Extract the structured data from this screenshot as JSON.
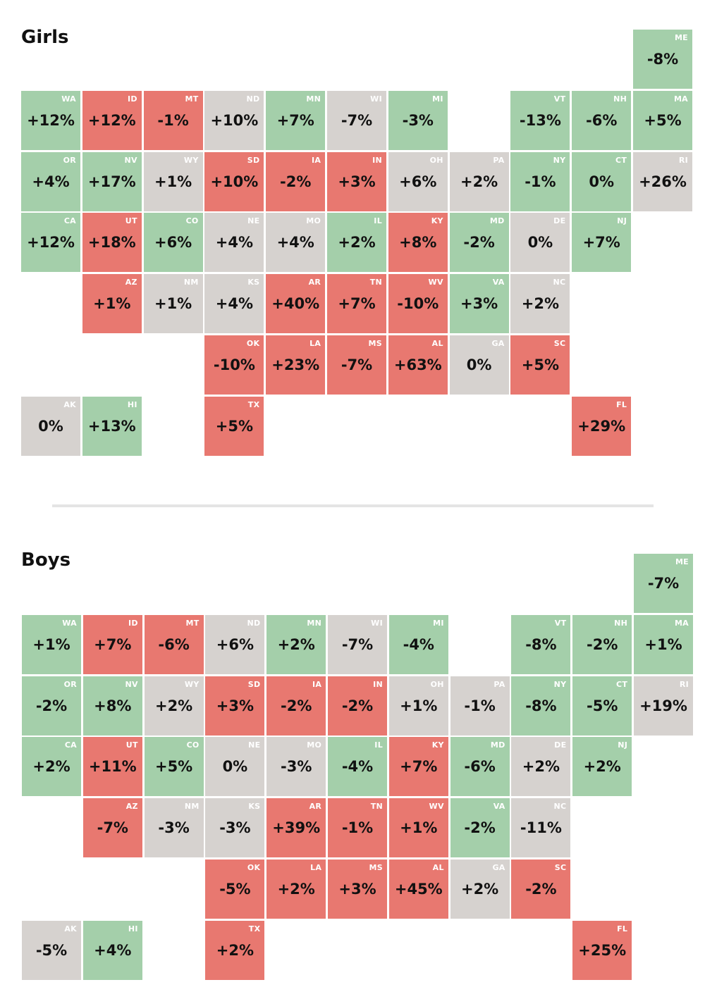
{
  "colors": {
    "green": "#a4cfaa",
    "red": "#e87870",
    "gray": "#d6d2cf"
  },
  "maps": [
    {
      "title": "Girls",
      "tiles": [
        {
          "state": "ME",
          "value": "-8%",
          "col": 10,
          "row": 0,
          "color": "green"
        },
        {
          "state": "WA",
          "value": "+12%",
          "col": 0,
          "row": 1,
          "color": "green"
        },
        {
          "state": "ID",
          "value": "+12%",
          "col": 1,
          "row": 1,
          "color": "red"
        },
        {
          "state": "MT",
          "value": "-1%",
          "col": 2,
          "row": 1,
          "color": "red"
        },
        {
          "state": "ND",
          "value": "+10%",
          "col": 3,
          "row": 1,
          "color": "gray"
        },
        {
          "state": "MN",
          "value": "+7%",
          "col": 4,
          "row": 1,
          "color": "green"
        },
        {
          "state": "WI",
          "value": "-7%",
          "col": 5,
          "row": 1,
          "color": "gray"
        },
        {
          "state": "MI",
          "value": "-3%",
          "col": 6,
          "row": 1,
          "color": "green"
        },
        {
          "state": "VT",
          "value": "-13%",
          "col": 8,
          "row": 1,
          "color": "green"
        },
        {
          "state": "NH",
          "value": "-6%",
          "col": 9,
          "row": 1,
          "color": "green"
        },
        {
          "state": "MA",
          "value": "+5%",
          "col": 10,
          "row": 1,
          "color": "green"
        },
        {
          "state": "OR",
          "value": "+4%",
          "col": 0,
          "row": 2,
          "color": "green"
        },
        {
          "state": "NV",
          "value": "+17%",
          "col": 1,
          "row": 2,
          "color": "green"
        },
        {
          "state": "WY",
          "value": "+1%",
          "col": 2,
          "row": 2,
          "color": "gray"
        },
        {
          "state": "SD",
          "value": "+10%",
          "col": 3,
          "row": 2,
          "color": "red"
        },
        {
          "state": "IA",
          "value": "-2%",
          "col": 4,
          "row": 2,
          "color": "red"
        },
        {
          "state": "IN",
          "value": "+3%",
          "col": 5,
          "row": 2,
          "color": "red"
        },
        {
          "state": "OH",
          "value": "+6%",
          "col": 6,
          "row": 2,
          "color": "gray"
        },
        {
          "state": "PA",
          "value": "+2%",
          "col": 7,
          "row": 2,
          "color": "gray"
        },
        {
          "state": "NY",
          "value": "-1%",
          "col": 8,
          "row": 2,
          "color": "green"
        },
        {
          "state": "CT",
          "value": "0%",
          "col": 9,
          "row": 2,
          "color": "green"
        },
        {
          "state": "RI",
          "value": "+26%",
          "col": 10,
          "row": 2,
          "color": "gray"
        },
        {
          "state": "CA",
          "value": "+12%",
          "col": 0,
          "row": 3,
          "color": "green"
        },
        {
          "state": "UT",
          "value": "+18%",
          "col": 1,
          "row": 3,
          "color": "red"
        },
        {
          "state": "CO",
          "value": "+6%",
          "col": 2,
          "row": 3,
          "color": "green"
        },
        {
          "state": "NE",
          "value": "+4%",
          "col": 3,
          "row": 3,
          "color": "gray"
        },
        {
          "state": "MO",
          "value": "+4%",
          "col": 4,
          "row": 3,
          "color": "gray"
        },
        {
          "state": "IL",
          "value": "+2%",
          "col": 5,
          "row": 3,
          "color": "green"
        },
        {
          "state": "KY",
          "value": "+8%",
          "col": 6,
          "row": 3,
          "color": "red"
        },
        {
          "state": "MD",
          "value": "-2%",
          "col": 7,
          "row": 3,
          "color": "green"
        },
        {
          "state": "DE",
          "value": "0%",
          "col": 8,
          "row": 3,
          "color": "gray"
        },
        {
          "state": "NJ",
          "value": "+7%",
          "col": 9,
          "row": 3,
          "color": "green"
        },
        {
          "state": "AZ",
          "value": "+1%",
          "col": 1,
          "row": 4,
          "color": "red"
        },
        {
          "state": "NM",
          "value": "+1%",
          "col": 2,
          "row": 4,
          "color": "gray"
        },
        {
          "state": "KS",
          "value": "+4%",
          "col": 3,
          "row": 4,
          "color": "gray"
        },
        {
          "state": "AR",
          "value": "+40%",
          "col": 4,
          "row": 4,
          "color": "red"
        },
        {
          "state": "TN",
          "value": "+7%",
          "col": 5,
          "row": 4,
          "color": "red"
        },
        {
          "state": "WV",
          "value": "-10%",
          "col": 6,
          "row": 4,
          "color": "red"
        },
        {
          "state": "VA",
          "value": "+3%",
          "col": 7,
          "row": 4,
          "color": "green"
        },
        {
          "state": "NC",
          "value": "+2%",
          "col": 8,
          "row": 4,
          "color": "gray"
        },
        {
          "state": "OK",
          "value": "-10%",
          "col": 3,
          "row": 5,
          "color": "red"
        },
        {
          "state": "LA",
          "value": "+23%",
          "col": 4,
          "row": 5,
          "color": "red"
        },
        {
          "state": "MS",
          "value": "-7%",
          "col": 5,
          "row": 5,
          "color": "red"
        },
        {
          "state": "AL",
          "value": "+63%",
          "col": 6,
          "row": 5,
          "color": "red"
        },
        {
          "state": "GA",
          "value": "0%",
          "col": 7,
          "row": 5,
          "color": "gray"
        },
        {
          "state": "SC",
          "value": "+5%",
          "col": 8,
          "row": 5,
          "color": "red"
        },
        {
          "state": "AK",
          "value": "0%",
          "col": 0,
          "row": 6,
          "color": "gray"
        },
        {
          "state": "HI",
          "value": "+13%",
          "col": 1,
          "row": 6,
          "color": "green"
        },
        {
          "state": "TX",
          "value": "+5%",
          "col": 3,
          "row": 6,
          "color": "red"
        },
        {
          "state": "FL",
          "value": "+29%",
          "col": 9,
          "row": 6,
          "color": "red"
        }
      ]
    },
    {
      "title": "Boys",
      "tiles": [
        {
          "state": "ME",
          "value": "-7%",
          "col": 10,
          "row": 0,
          "color": "green"
        },
        {
          "state": "WA",
          "value": "+1%",
          "col": 0,
          "row": 1,
          "color": "green"
        },
        {
          "state": "ID",
          "value": "+7%",
          "col": 1,
          "row": 1,
          "color": "red"
        },
        {
          "state": "MT",
          "value": "-6%",
          "col": 2,
          "row": 1,
          "color": "red"
        },
        {
          "state": "ND",
          "value": "+6%",
          "col": 3,
          "row": 1,
          "color": "gray"
        },
        {
          "state": "MN",
          "value": "+2%",
          "col": 4,
          "row": 1,
          "color": "green"
        },
        {
          "state": "WI",
          "value": "-7%",
          "col": 5,
          "row": 1,
          "color": "gray"
        },
        {
          "state": "MI",
          "value": "-4%",
          "col": 6,
          "row": 1,
          "color": "green"
        },
        {
          "state": "VT",
          "value": "-8%",
          "col": 8,
          "row": 1,
          "color": "green"
        },
        {
          "state": "NH",
          "value": "-2%",
          "col": 9,
          "row": 1,
          "color": "green"
        },
        {
          "state": "MA",
          "value": "+1%",
          "col": 10,
          "row": 1,
          "color": "green"
        },
        {
          "state": "OR",
          "value": "-2%",
          "col": 0,
          "row": 2,
          "color": "green"
        },
        {
          "state": "NV",
          "value": "+8%",
          "col": 1,
          "row": 2,
          "color": "green"
        },
        {
          "state": "WY",
          "value": "+2%",
          "col": 2,
          "row": 2,
          "color": "gray"
        },
        {
          "state": "SD",
          "value": "+3%",
          "col": 3,
          "row": 2,
          "color": "red"
        },
        {
          "state": "IA",
          "value": "-2%",
          "col": 4,
          "row": 2,
          "color": "red"
        },
        {
          "state": "IN",
          "value": "-2%",
          "col": 5,
          "row": 2,
          "color": "red"
        },
        {
          "state": "OH",
          "value": "+1%",
          "col": 6,
          "row": 2,
          "color": "gray"
        },
        {
          "state": "PA",
          "value": "-1%",
          "col": 7,
          "row": 2,
          "color": "gray"
        },
        {
          "state": "NY",
          "value": "-8%",
          "col": 8,
          "row": 2,
          "color": "green"
        },
        {
          "state": "CT",
          "value": "-5%",
          "col": 9,
          "row": 2,
          "color": "green"
        },
        {
          "state": "RI",
          "value": "+19%",
          "col": 10,
          "row": 2,
          "color": "gray"
        },
        {
          "state": "CA",
          "value": "+2%",
          "col": 0,
          "row": 3,
          "color": "green"
        },
        {
          "state": "UT",
          "value": "+11%",
          "col": 1,
          "row": 3,
          "color": "red"
        },
        {
          "state": "CO",
          "value": "+5%",
          "col": 2,
          "row": 3,
          "color": "green"
        },
        {
          "state": "NE",
          "value": "0%",
          "col": 3,
          "row": 3,
          "color": "gray"
        },
        {
          "state": "MO",
          "value": "-3%",
          "col": 4,
          "row": 3,
          "color": "gray"
        },
        {
          "state": "IL",
          "value": "-4%",
          "col": 5,
          "row": 3,
          "color": "green"
        },
        {
          "state": "KY",
          "value": "+7%",
          "col": 6,
          "row": 3,
          "color": "red"
        },
        {
          "state": "MD",
          "value": "-6%",
          "col": 7,
          "row": 3,
          "color": "green"
        },
        {
          "state": "DE",
          "value": "+2%",
          "col": 8,
          "row": 3,
          "color": "gray"
        },
        {
          "state": "NJ",
          "value": "+2%",
          "col": 9,
          "row": 3,
          "color": "green"
        },
        {
          "state": "AZ",
          "value": "-7%",
          "col": 1,
          "row": 4,
          "color": "red"
        },
        {
          "state": "NM",
          "value": "-3%",
          "col": 2,
          "row": 4,
          "color": "gray"
        },
        {
          "state": "KS",
          "value": "-3%",
          "col": 3,
          "row": 4,
          "color": "gray"
        },
        {
          "state": "AR",
          "value": "+39%",
          "col": 4,
          "row": 4,
          "color": "red"
        },
        {
          "state": "TN",
          "value": "-1%",
          "col": 5,
          "row": 4,
          "color": "red"
        },
        {
          "state": "WV",
          "value": "+1%",
          "col": 6,
          "row": 4,
          "color": "red"
        },
        {
          "state": "VA",
          "value": "-2%",
          "col": 7,
          "row": 4,
          "color": "green"
        },
        {
          "state": "NC",
          "value": "-11%",
          "col": 8,
          "row": 4,
          "color": "gray"
        },
        {
          "state": "OK",
          "value": "-5%",
          "col": 3,
          "row": 5,
          "color": "red"
        },
        {
          "state": "LA",
          "value": "+2%",
          "col": 4,
          "row": 5,
          "color": "red"
        },
        {
          "state": "MS",
          "value": "+3%",
          "col": 5,
          "row": 5,
          "color": "red"
        },
        {
          "state": "AL",
          "value": "+45%",
          "col": 6,
          "row": 5,
          "color": "red"
        },
        {
          "state": "GA",
          "value": "+2%",
          "col": 7,
          "row": 5,
          "color": "gray"
        },
        {
          "state": "SC",
          "value": "-2%",
          "col": 8,
          "row": 5,
          "color": "red"
        },
        {
          "state": "AK",
          "value": "-5%",
          "col": 0,
          "row": 6,
          "color": "gray"
        },
        {
          "state": "HI",
          "value": "+4%",
          "col": 1,
          "row": 6,
          "color": "green"
        },
        {
          "state": "TX",
          "value": "+2%",
          "col": 3,
          "row": 6,
          "color": "red"
        },
        {
          "state": "FL",
          "value": "+25%",
          "col": 9,
          "row": 6,
          "color": "red"
        }
      ]
    }
  ]
}
